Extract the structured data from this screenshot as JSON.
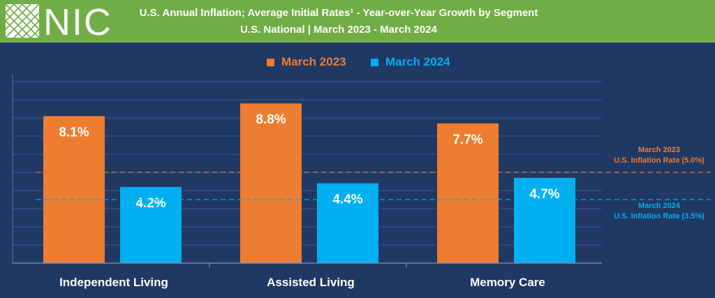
{
  "header": {
    "logo_text": "NIC",
    "title": "U.S. Annual Inflation; Average Initial Rates¹ - Year-over-Year Growth by Segment",
    "subtitle": "U.S. National | March 2023 - March 2024"
  },
  "colors": {
    "header_bg": "#70ad47",
    "chart_bg": "#1f3864",
    "series_2023": "#ed7d31",
    "series_2024": "#00b0f0",
    "gridline": "#3b5a8c"
  },
  "chart_data": {
    "type": "bar",
    "title": "U.S. Annual Inflation; Average Initial Rates¹ - Year-over-Year Growth by Segment",
    "subtitle": "U.S. National | March 2023 - March 2024",
    "categories": [
      "Independent Living",
      "Assisted Living",
      "Memory Care"
    ],
    "series": [
      {
        "name": "March 2023",
        "values": [
          8.1,
          8.8,
          7.7
        ],
        "labels": [
          "8.1%",
          "8.8%",
          "7.7%"
        ],
        "color": "#ed7d31"
      },
      {
        "name": "March 2024",
        "values": [
          4.2,
          4.4,
          4.7
        ],
        "labels": [
          "4.2%",
          "4.4%",
          "4.7%"
        ],
        "color": "#00b0f0"
      }
    ],
    "reference_lines": [
      {
        "value": 5.0,
        "label_line1": "March 2023",
        "label_line2": "U.S. Inflation Rate (5.0%)",
        "color": "#ed7d31"
      },
      {
        "value": 3.5,
        "label_line1": "March 2024",
        "label_line2": "U.S. Inflation Rate (3.5%)",
        "color": "#00b0f0"
      }
    ],
    "ylim": [
      0,
      10
    ],
    "legend_position": "top-center",
    "grid": true
  }
}
